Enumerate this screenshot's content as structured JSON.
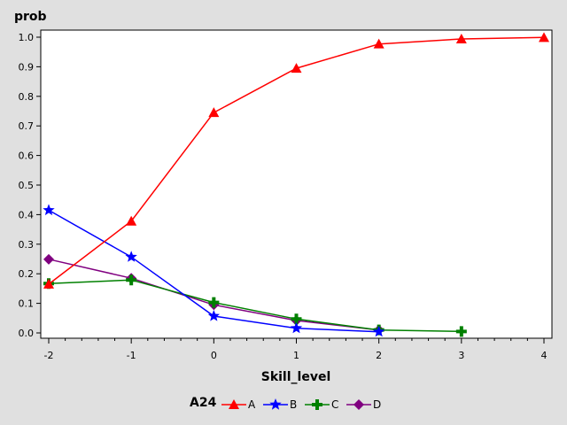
{
  "chart_data": {
    "type": "line",
    "xlabel": "Skill_level",
    "ylabel": "prob",
    "xlim": [
      -2,
      4
    ],
    "ylim": [
      0,
      1.0
    ],
    "x_ticks": [
      -2,
      -1,
      0,
      1,
      2,
      3,
      4
    ],
    "y_ticks": [
      "0.0",
      "0.1",
      "0.2",
      "0.3",
      "0.4",
      "0.5",
      "0.6",
      "0.7",
      "0.8",
      "0.9",
      "1.0"
    ],
    "grid": false,
    "legend": {
      "title": "A24",
      "placement": "bottom"
    },
    "series": [
      {
        "name": "A",
        "color": "#ff0000",
        "marker": "triangle",
        "x": [
          -2,
          -1,
          0,
          1,
          2,
          3,
          4
        ],
        "values": [
          0.165,
          0.378,
          0.745,
          0.895,
          0.977,
          0.994,
          0.999
        ]
      },
      {
        "name": "B",
        "color": "#0000ff",
        "marker": "star",
        "x": [
          -2,
          -1,
          0,
          1,
          2
        ],
        "values": [
          0.415,
          0.257,
          0.057,
          0.016,
          0.004
        ]
      },
      {
        "name": "C",
        "color": "#008000",
        "marker": "plus",
        "x": [
          -2,
          -1,
          0,
          1,
          2,
          3
        ],
        "values": [
          0.167,
          0.179,
          0.103,
          0.047,
          0.01,
          0.005
        ]
      },
      {
        "name": "D",
        "color": "#800080",
        "marker": "diamond",
        "x": [
          -2,
          -1,
          0,
          1,
          2
        ],
        "values": [
          0.249,
          0.185,
          0.095,
          0.042,
          0.01
        ]
      }
    ]
  }
}
